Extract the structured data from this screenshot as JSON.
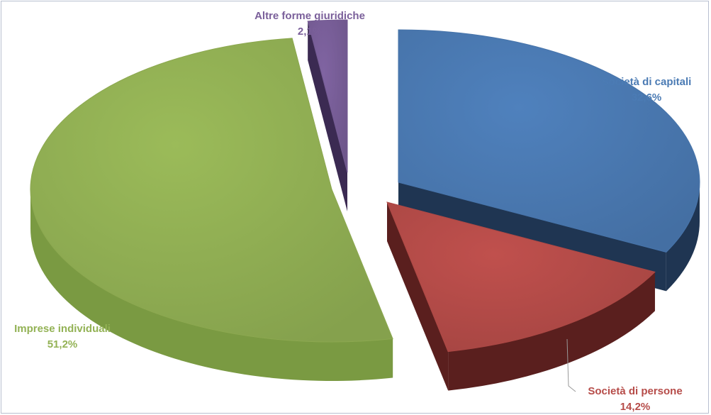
{
  "chart_data": {
    "type": "pie",
    "title": "",
    "style": "3d-exploded",
    "slices": [
      {
        "label": "Società di capitali",
        "value": 32.6,
        "value_label": "32,6%",
        "color": "#4f81bd",
        "side_color": "#1f3552"
      },
      {
        "label": "Società di persone",
        "value": 14.2,
        "value_label": "14,2%",
        "color": "#c0504d",
        "side_color": "#5a1f1e"
      },
      {
        "label": "Imprese individuali",
        "value": 51.2,
        "value_label": "51,2%",
        "color": "#9bbb59",
        "side_color": "#7a9a42"
      },
      {
        "label": "Altre forme giuridiche",
        "value": 2.1,
        "value_label": "2,1%",
        "color": "#8064a2",
        "side_color": "#3b2a52"
      }
    ]
  }
}
